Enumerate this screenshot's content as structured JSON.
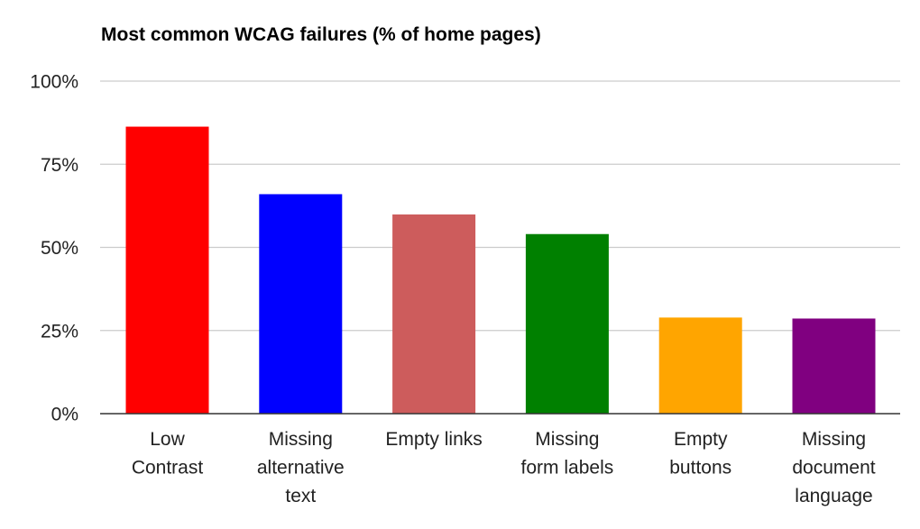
{
  "chart_data": {
    "type": "bar",
    "title": "Most common WCAG failures (% of home pages)",
    "xlabel": "",
    "ylabel": "",
    "ylim": [
      0,
      100
    ],
    "yticks": [
      "0%",
      "25%",
      "50%",
      "75%",
      "100%"
    ],
    "ytick_values": [
      0,
      25,
      50,
      75,
      100
    ],
    "grid": true,
    "legend": "none",
    "categories": [
      [
        "Low",
        "Contrast"
      ],
      [
        "Missing",
        "alternative",
        "text"
      ],
      [
        "Empty links"
      ],
      [
        "Missing",
        "form labels"
      ],
      [
        "Empty",
        "buttons"
      ],
      [
        "Missing",
        "document",
        "language"
      ]
    ],
    "values": [
      86.3,
      66.0,
      59.9,
      54.0,
      28.9,
      28.6
    ],
    "colors": [
      "#ff0000",
      "#0000ff",
      "#cd5c5c",
      "#008000",
      "#ffa500",
      "#800080"
    ]
  }
}
